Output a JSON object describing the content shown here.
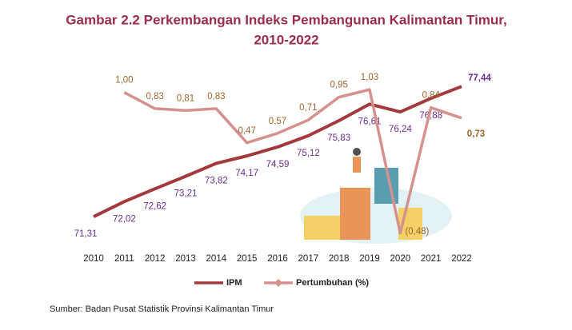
{
  "chart_data": {
    "type": "line",
    "title_lines": [
      "Gambar 2.2 Perkembangan Indeks Pembangunan Kalimantan Timur,",
      "2010-2022"
    ],
    "categories": [
      "2010",
      "2011",
      "2012",
      "2013",
      "2014",
      "2015",
      "2016",
      "2017",
      "2018",
      "2019",
      "2020",
      "2021",
      "2022"
    ],
    "series": [
      {
        "name": "IPM",
        "color": "#a3393c",
        "label_color": "#6a2c91",
        "values": [
          71.31,
          72.02,
          72.62,
          73.21,
          73.82,
          74.17,
          74.59,
          75.12,
          75.83,
          76.61,
          76.24,
          76.88,
          77.44
        ],
        "value_labels": [
          "71,31",
          "72,02",
          "72,62",
          "73,21",
          "73,82",
          "74,17",
          "74,59",
          "75,12",
          "75,83",
          "76,61",
          "76,24",
          "76,88",
          "77,44"
        ]
      },
      {
        "name": "Pertumbuhan (%)",
        "color": "#d4918e",
        "label_color": "#a0642a",
        "axis": "y2",
        "values": [
          null,
          1.0,
          0.83,
          0.81,
          0.83,
          0.47,
          0.57,
          0.71,
          0.95,
          1.03,
          -0.48,
          0.84,
          0.73
        ],
        "value_labels": [
          null,
          "1,00",
          "0,83",
          "0,81",
          "0,83",
          "0,47",
          "0,57",
          "0,71",
          "0,95",
          "1,03",
          "(0,48)",
          "0,84",
          "0,73"
        ]
      }
    ],
    "ylim": [
      70,
      78.5
    ],
    "y2lim": [
      -0.6,
      1.3
    ],
    "legend": "bottom",
    "source": "Sumber: Badan Pusat Statistik Provinsi Kalimantan Timur"
  }
}
